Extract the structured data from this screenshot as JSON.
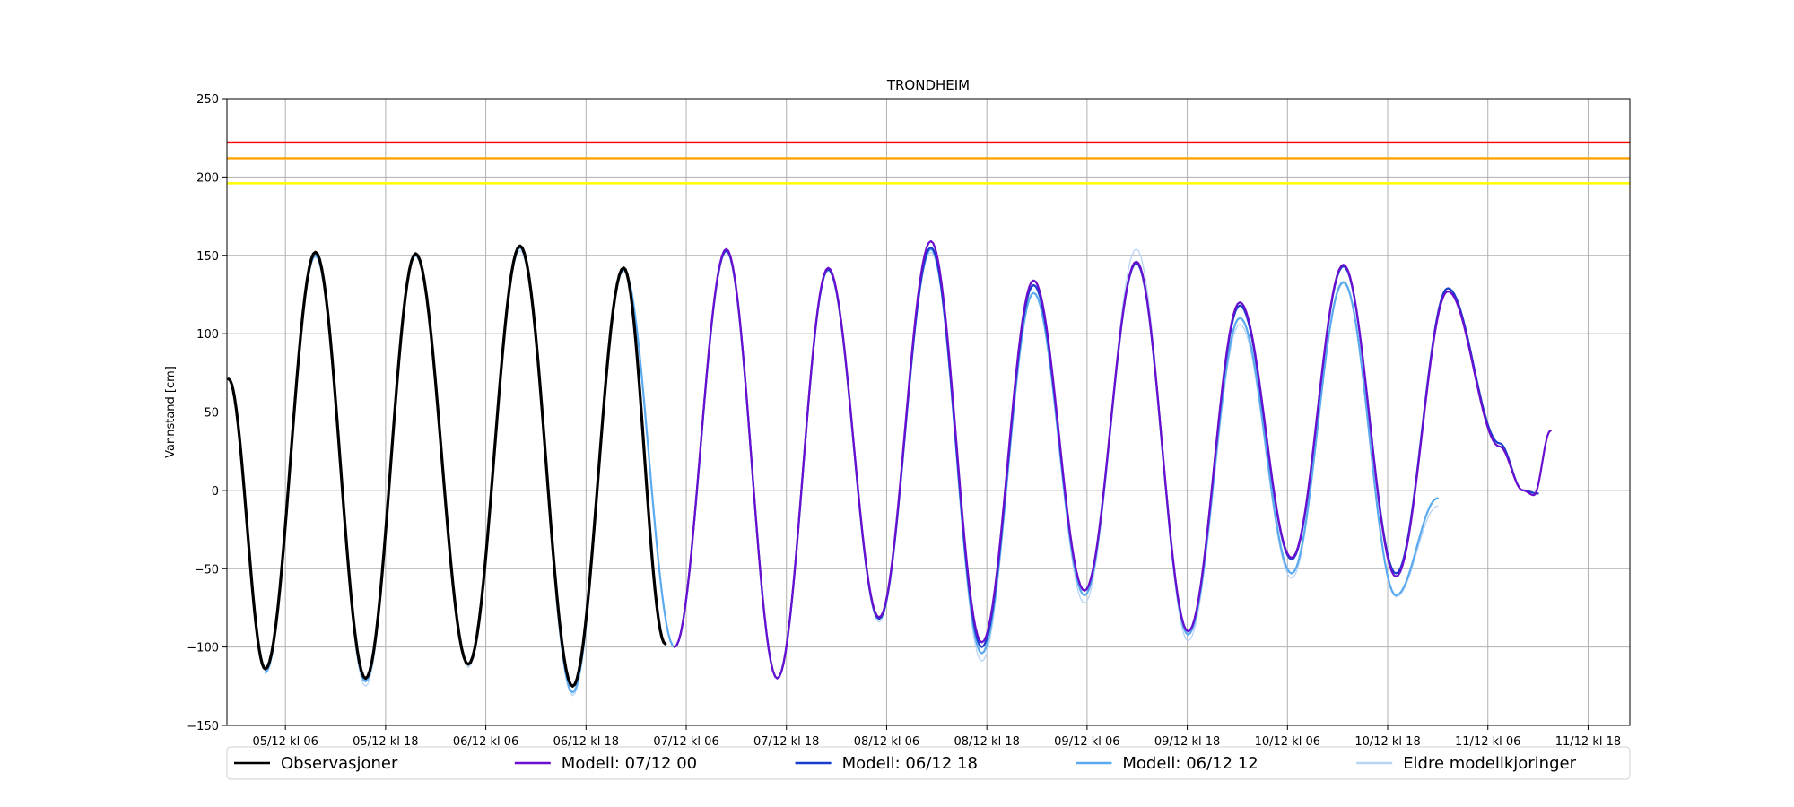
{
  "chart_data": {
    "type": "line",
    "title": "TRONDHEIM",
    "xlabel": "",
    "ylabel": "Vannstand [cm]",
    "ylim": [
      -150,
      250
    ],
    "yticks": [
      -150,
      -100,
      -50,
      0,
      50,
      100,
      150,
      200,
      250
    ],
    "xlim_hours": [
      -7,
      161
    ],
    "x_ticks": [
      {
        "hour": 0,
        "label": "05/12 kl 06"
      },
      {
        "hour": 12,
        "label": "05/12 kl 18"
      },
      {
        "hour": 24,
        "label": "06/12 kl 06"
      },
      {
        "hour": 36,
        "label": "06/12 kl 18"
      },
      {
        "hour": 48,
        "label": "07/12 kl 06"
      },
      {
        "hour": 60,
        "label": "07/12 kl 18"
      },
      {
        "hour": 72,
        "label": "08/12 kl 06"
      },
      {
        "hour": 84,
        "label": "08/12 kl 18"
      },
      {
        "hour": 96,
        "label": "09/12 kl 06"
      },
      {
        "hour": 108,
        "label": "09/12 kl 18"
      },
      {
        "hour": 120,
        "label": "10/12 kl 06"
      },
      {
        "hour": 132,
        "label": "10/12 kl 18"
      },
      {
        "hour": 144,
        "label": "11/12 kl 06"
      },
      {
        "hour": 156,
        "label": "11/12 kl 18"
      }
    ],
    "grid": true,
    "legend_position": "bottom",
    "threshold_lines": [
      {
        "value": 222,
        "color": "#ff0000"
      },
      {
        "value": 212,
        "color": "#ffa500"
      },
      {
        "value": 196,
        "color": "#ffff00"
      }
    ],
    "series": [
      {
        "name": "Eldre modellkjoringer",
        "color": "#b8d4f5",
        "width": 1.3,
        "x": [
          -2.4,
          3.6,
          9.6,
          15.6,
          21.9,
          28.1,
          34.4,
          40.5,
          46.6,
          52.8,
          58.9,
          65.0,
          71.1,
          77.3,
          83.4,
          89.6,
          95.7,
          101.9,
          108.1,
          114.3,
          120.5,
          126.7,
          133.0,
          138.0
        ],
        "y": [
          -117,
          149,
          -125,
          152,
          -113,
          153,
          -131,
          140,
          -100,
          152,
          -120,
          140,
          -84,
          152,
          -109,
          126,
          -72,
          154,
          -96,
          106,
          -56,
          132,
          -68,
          -10
        ]
      },
      {
        "name": "Modell: 06/12 12",
        "color": "#5aaaf0",
        "width": 2.2,
        "x": [
          -2.4,
          3.6,
          9.6,
          15.6,
          21.9,
          28.1,
          34.4,
          40.5,
          46.6,
          52.8,
          58.9,
          65.0,
          71.1,
          77.3,
          83.4,
          89.6,
          95.7,
          101.9,
          108.1,
          114.3,
          120.5,
          126.7,
          133.0,
          138.0
        ],
        "y": [
          -116,
          150,
          -122,
          150,
          -111,
          155,
          -129,
          141,
          -100,
          153,
          -120,
          141,
          -82,
          154,
          -104,
          126,
          -67,
          146,
          -92,
          110,
          -53,
          133,
          -67,
          -5
        ]
      },
      {
        "name": "Modell: 06/12 18",
        "color": "#1a3ccc",
        "width": 2.2,
        "x": [
          46.6,
          52.8,
          58.9,
          65.0,
          71.1,
          77.3,
          83.4,
          89.6,
          95.7,
          101.9,
          108.1,
          114.3,
          120.5,
          126.7,
          133.0,
          139.2,
          145.4,
          148.2,
          150.0
        ],
        "y": [
          -100,
          153,
          -120,
          141,
          -82,
          155,
          -100,
          131,
          -64,
          145,
          -90,
          118,
          -44,
          143,
          -53,
          129,
          30,
          0,
          -2
        ]
      },
      {
        "name": "Modell: 07/12 00",
        "color": "#6a0fd0",
        "width": 2.2,
        "x": [
          46.6,
          52.8,
          58.9,
          65.0,
          71.1,
          77.3,
          83.4,
          89.6,
          95.7,
          101.9,
          108.1,
          114.3,
          120.5,
          126.7,
          133.0,
          139.2,
          145.4,
          148.2,
          149.5,
          151.5
        ],
        "y": [
          -100,
          154,
          -120,
          142,
          -81,
          159,
          -97,
          134,
          -64,
          146,
          -90,
          120,
          -43,
          144,
          -55,
          127,
          28,
          0,
          -3,
          38
        ]
      },
      {
        "name": "Observasjoner",
        "color": "#000000",
        "width": 3.2,
        "x": [
          -6.8,
          -2.4,
          3.6,
          9.6,
          15.6,
          21.9,
          28.1,
          34.4,
          40.5,
          45.5
        ],
        "y": [
          71,
          -114,
          152,
          -120,
          151,
          -111,
          156,
          -125,
          142,
          -98
        ]
      }
    ],
    "legend": [
      {
        "label": "Observasjoner",
        "color": "#000000"
      },
      {
        "label": "Modell: 07/12 00",
        "color": "#6a0fd0"
      },
      {
        "label": "Modell: 06/12 18",
        "color": "#1a3ccc"
      },
      {
        "label": "Modell: 06/12 12",
        "color": "#5aaaf0"
      },
      {
        "label": "Eldre modellkjoringer",
        "color": "#b8d4f5"
      }
    ]
  }
}
